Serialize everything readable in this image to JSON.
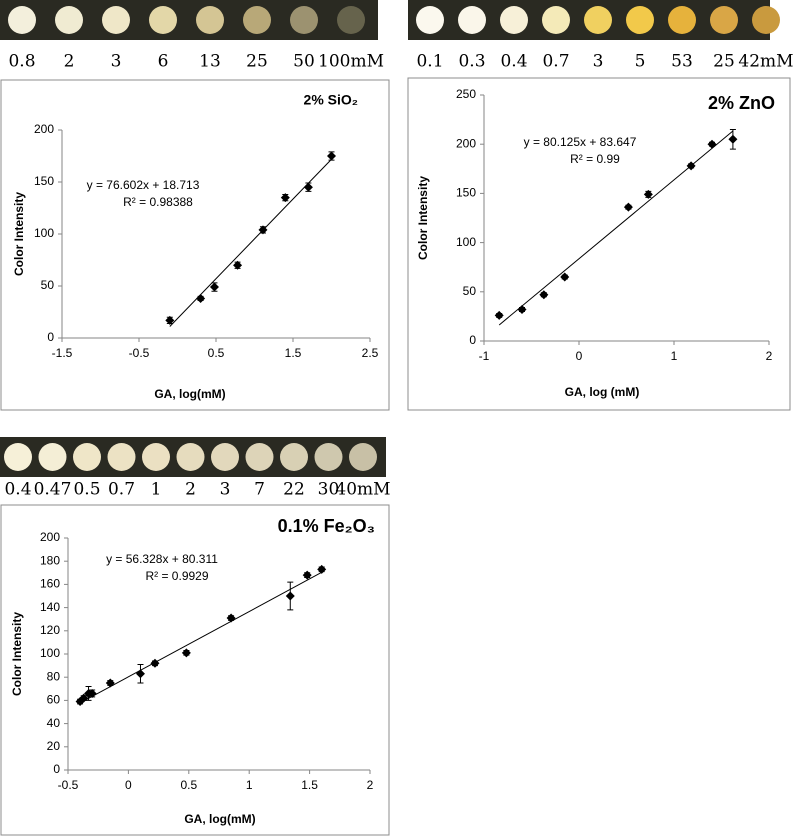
{
  "chart_data": [
    {
      "type": "scatter",
      "title": "2% SiO₂",
      "annotations": [
        "y = 76.602x + 18.713",
        "R² = 0.98388"
      ],
      "xlabel": "GA, log(mM)",
      "ylabel": "Color Intensity",
      "xlim": [
        -1.5,
        2.5
      ],
      "xticks": [
        -1.5,
        -0.5,
        0.5,
        1.5,
        2.5
      ],
      "ylim": [
        0,
        200
      ],
      "yticks": [
        0,
        50,
        100,
        150,
        200
      ],
      "series": [
        {
          "color": "#000000",
          "x": [
            -0.1,
            0.3,
            0.48,
            0.78,
            1.11,
            1.4,
            1.7,
            2.0
          ],
          "values": [
            17,
            38,
            49,
            70,
            104,
            135,
            145,
            175
          ],
          "errors": [
            3,
            2,
            4,
            3,
            3,
            3,
            4,
            4
          ]
        }
      ],
      "trendline": {
        "color": "#000000",
        "x": [
          -0.1,
          2.0
        ],
        "values": [
          11.05,
          171.9
        ]
      }
    },
    {
      "type": "scatter",
      "title": "2% ZnO",
      "annotations": [
        "y = 80.125x + 83.647",
        "R² = 0.99"
      ],
      "xlabel": "GA, log (mM)",
      "ylabel": "Color Intensity",
      "xlim": [
        -1,
        2
      ],
      "xticks": [
        -1,
        0,
        1,
        2
      ],
      "ylim": [
        0,
        250
      ],
      "yticks": [
        0,
        50,
        100,
        150,
        200,
        250
      ],
      "series": [
        {
          "color": "#000000",
          "x": [
            -0.84,
            -0.6,
            -0.37,
            -0.15,
            0.52,
            0.73,
            1.18,
            1.4,
            1.62
          ],
          "values": [
            26,
            32,
            47,
            65,
            136,
            149,
            178,
            200,
            205
          ],
          "errors": [
            2,
            2,
            2,
            2,
            2,
            3,
            2,
            2,
            10
          ]
        }
      ],
      "trendline": {
        "color": "#000000",
        "x": [
          -0.84,
          1.62
        ],
        "values": [
          16.3,
          213.4
        ]
      }
    },
    {
      "type": "scatter",
      "title": "0.1% Fe₂O₃",
      "annotations": [
        "y = 56.328x + 80.311",
        "R² = 0.9929"
      ],
      "xlabel": "GA, log(mM)",
      "ylabel": "Color Intensity",
      "xlim": [
        -0.5,
        2
      ],
      "xticks": [
        -0.5,
        0,
        0.5,
        1,
        1.5,
        2
      ],
      "ylim": [
        0,
        200
      ],
      "yticks": [
        0,
        20,
        40,
        60,
        80,
        100,
        120,
        140,
        160,
        180,
        200
      ],
      "series": [
        {
          "color": "#000000",
          "x": [
            -0.4,
            -0.37,
            -0.33,
            -0.3,
            -0.15,
            0.1,
            0.22,
            0.48,
            0.85,
            1.34,
            1.48,
            1.6
          ],
          "values": [
            59,
            62,
            66,
            66,
            75,
            83,
            92,
            101,
            131,
            150,
            168,
            173
          ],
          "errors": [
            2,
            2,
            6,
            3,
            2,
            8,
            2,
            2,
            2,
            12,
            2,
            2
          ]
        }
      ],
      "trendline": {
        "color": "#000000",
        "x": [
          -0.4,
          1.6
        ],
        "values": [
          57.8,
          170.4
        ]
      }
    }
  ],
  "strips": [
    {
      "labels": [
        "0.8",
        "2",
        "3",
        "6",
        "13",
        "25",
        "50",
        "100mM"
      ],
      "colors": [
        "#f3efdc",
        "#f0ebd2",
        "#efe7c8",
        "#e3d7a8",
        "#d4c594",
        "#b8a878",
        "#9c9270",
        "#66634c"
      ]
    },
    {
      "labels": [
        "0.1",
        "0.3",
        "0.4",
        "0.7",
        "3",
        "5",
        "53",
        "25",
        "42mM"
      ],
      "colors": [
        "#fbf8ee",
        "#faf6ea",
        "#f7f0d8",
        "#f4eab8",
        "#f0d060",
        "#f2c94a",
        "#e6b23c",
        "#d9a646",
        "#c99a3e"
      ]
    },
    {
      "labels": [
        "0.4",
        "0.47",
        "0.5",
        "0.7",
        "1",
        "2",
        "3",
        "7",
        "22",
        "30",
        "40mM"
      ],
      "colors": [
        "#f6f0d8",
        "#f4eed6",
        "#efe6c8",
        "#ece2c4",
        "#ebe0c2",
        "#e6dcbe",
        "#e2d8bc",
        "#ddd4b8",
        "#d8d0b4",
        "#cfc8ae",
        "#c8c0a6"
      ]
    }
  ]
}
